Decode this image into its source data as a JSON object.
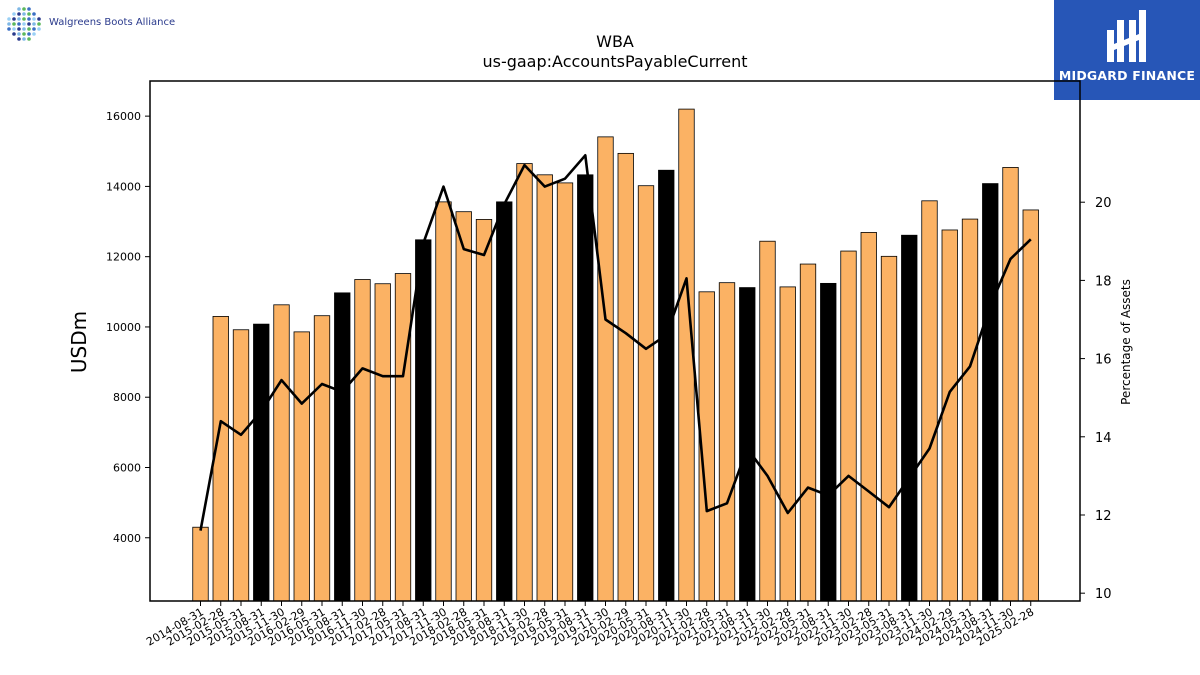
{
  "brand": {
    "company_name": "Walgreens Boots Alliance",
    "partner_name": "MIDGARD FINANCE",
    "partner_color": "#2756b7"
  },
  "chart_data": {
    "type": "bar",
    "title": "WBA",
    "subtitle": "us-gaap:AccountsPayableCurrent",
    "ylabel": "USDm",
    "y2label": "Percentage of Assets",
    "ylim": [
      2200,
      17000
    ],
    "y2lim": [
      9.8,
      23.1
    ],
    "yticks": [
      4000,
      6000,
      8000,
      10000,
      12000,
      14000,
      16000
    ],
    "y2ticks": [
      10,
      12,
      14,
      16,
      18,
      20
    ],
    "colors": {
      "bar": "#fbb264",
      "bar_highlight": "#000000",
      "line": "#000000"
    },
    "categories": [
      "2014-08-31",
      "2015-02-28",
      "2015-05-31",
      "2015-08-31",
      "2015-11-30",
      "2016-02-29",
      "2016-05-31",
      "2016-08-31",
      "2016-11-30",
      "2017-02-28",
      "2017-05-31",
      "2017-08-31",
      "2017-11-30",
      "2018-02-28",
      "2018-05-31",
      "2018-08-31",
      "2018-11-30",
      "2019-02-28",
      "2019-05-31",
      "2019-08-31",
      "2019-11-30",
      "2020-02-29",
      "2020-05-31",
      "2020-08-31",
      "2020-11-30",
      "2021-02-28",
      "2021-05-31",
      "2021-08-31",
      "2021-11-30",
      "2022-02-28",
      "2022-05-31",
      "2022-08-31",
      "2022-11-30",
      "2023-02-28",
      "2023-05-31",
      "2023-08-31",
      "2023-11-30",
      "2024-02-29",
      "2024-05-31",
      "2024-08-31",
      "2024-11-30",
      "2025-02-28"
    ],
    "series": [
      {
        "values": [
          4300,
          10300,
          9920,
          10080,
          10630,
          9860,
          10320,
          10970,
          11350,
          11230,
          11520,
          12480,
          13560,
          13280,
          13060,
          13560,
          14650,
          14330,
          14100,
          14330,
          15410,
          14940,
          14020,
          14460,
          16200,
          11000,
          11260,
          11120,
          12440,
          11140,
          11790,
          11240,
          12160,
          12690,
          12010,
          12610,
          13590,
          12760,
          13070,
          14080,
          14540,
          13330
        ],
        "highlight": [
          false,
          false,
          false,
          true,
          false,
          false,
          false,
          true,
          false,
          false,
          false,
          true,
          false,
          false,
          false,
          true,
          false,
          false,
          false,
          true,
          false,
          false,
          false,
          true,
          false,
          false,
          false,
          true,
          false,
          false,
          false,
          true,
          false,
          false,
          false,
          true,
          false,
          false,
          false,
          true,
          false,
          false
        ]
      },
      {
        "axis": "right",
        "values": [
          11.6,
          14.4,
          14.05,
          14.65,
          15.45,
          14.85,
          15.35,
          15.15,
          15.75,
          15.55,
          15.55,
          18.95,
          20.4,
          18.8,
          18.65,
          19.95,
          20.95,
          20.4,
          20.6,
          21.2,
          17.0,
          16.65,
          16.25,
          16.6,
          18.05,
          12.1,
          12.3,
          13.7,
          13.0,
          12.05,
          12.7,
          12.5,
          13.0,
          12.6,
          12.2,
          12.95,
          13.7,
          15.15,
          15.8,
          17.35,
          18.55,
          19.05
        ]
      }
    ]
  }
}
